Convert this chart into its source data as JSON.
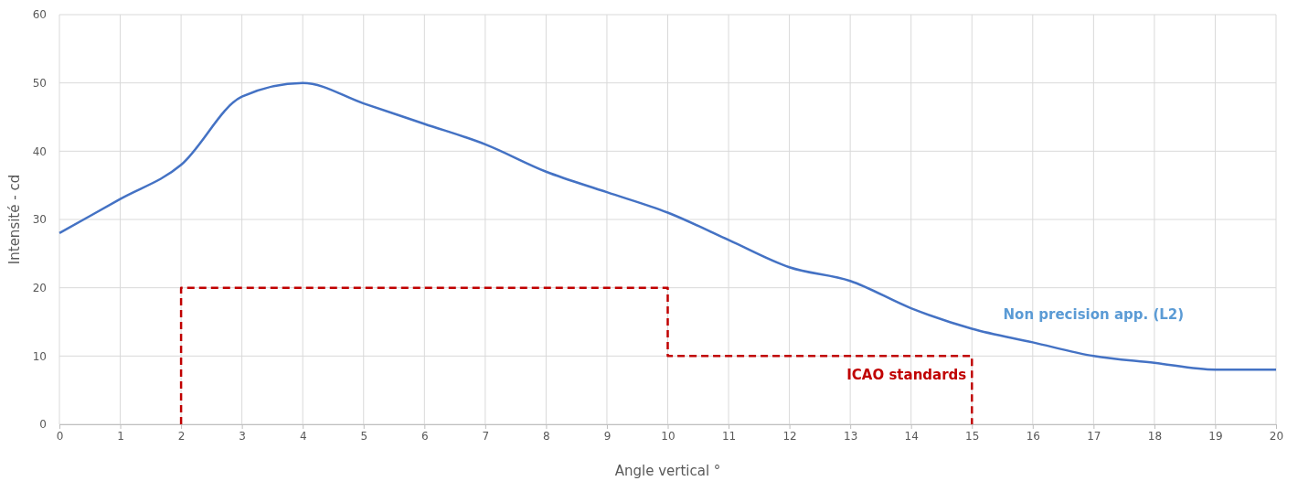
{
  "chart_data": {
    "type": "line",
    "xlabel": "Angle vertical °",
    "ylabel": "Intensité - cd",
    "xlim": [
      0,
      20
    ],
    "xticks": [
      0,
      1,
      2,
      3,
      4,
      5,
      6,
      7,
      8,
      9,
      10,
      11,
      12,
      13,
      14,
      15,
      16,
      17,
      18,
      19,
      20
    ],
    "ylim": [
      0,
      60
    ],
    "yticks": [
      0,
      10,
      20,
      30,
      40,
      50,
      60
    ],
    "grid": true,
    "series": [
      {
        "name": "Non precision app. (L2)",
        "color": "#4472c4",
        "line_style": "solid",
        "x": [
          0,
          1,
          2,
          3,
          4,
          5,
          6,
          7,
          8,
          9,
          10,
          11,
          12,
          13,
          14,
          15,
          16,
          17,
          18,
          19,
          20
        ],
        "values": [
          28,
          33,
          38,
          48,
          50,
          47,
          44,
          41,
          37,
          34,
          31,
          27,
          23,
          21,
          17,
          14,
          12,
          10,
          9,
          8,
          8
        ]
      },
      {
        "name": "ICAO standards",
        "color": "#c00000",
        "line_style": "dashed",
        "x": [
          2,
          2,
          10,
          10,
          15,
          15
        ],
        "values": [
          0,
          20,
          20,
          10,
          10,
          0
        ]
      }
    ]
  }
}
